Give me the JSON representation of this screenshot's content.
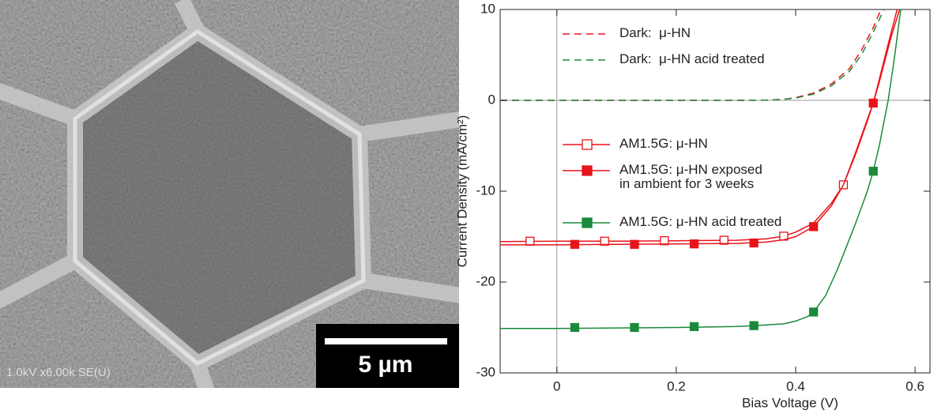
{
  "image": {
    "caption": "1.0kV x6.00k SE(U)",
    "scale_bar": "5 µm"
  },
  "chart_data": {
    "type": "line",
    "xlabel": "Bias Voltage (V)",
    "ylabel": "Current Density (mA/cm²)",
    "xlim": [
      -0.095,
      0.625
    ],
    "ylim": [
      -30,
      10
    ],
    "xticks": [
      0,
      0.2,
      0.4,
      0.6
    ],
    "yticks": [
      -30,
      -20,
      -10,
      0,
      10
    ],
    "zero_lines": true,
    "series": [
      {
        "name": "Dark:  μ-HN",
        "color": "#e8141b",
        "dash": true,
        "x": [
          -0.095,
          0,
          0.1,
          0.2,
          0.3,
          0.35,
          0.38,
          0.4,
          0.43,
          0.46,
          0.49,
          0.51,
          0.53,
          0.543
        ],
        "values": [
          0,
          0,
          0,
          0,
          0,
          0.02,
          0.1,
          0.3,
          0.8,
          1.8,
          3.5,
          5.5,
          8.0,
          10
        ]
      },
      {
        "name": "Dark:  μ-HN acid treated",
        "color": "#1a8a3a",
        "dash": true,
        "x": [
          -0.095,
          0,
          0.1,
          0.2,
          0.3,
          0.35,
          0.38,
          0.4,
          0.43,
          0.46,
          0.49,
          0.51,
          0.53,
          0.548
        ],
        "values": [
          0,
          0,
          0,
          0,
          0,
          0.02,
          0.1,
          0.25,
          0.7,
          1.6,
          3.2,
          5.0,
          7.5,
          10
        ]
      },
      {
        "name": "AM1.5G: μ-HN",
        "color": "#e8141b",
        "marker": "open",
        "x": [
          -0.095,
          0,
          0.1,
          0.2,
          0.3,
          0.35,
          0.38,
          0.4,
          0.43,
          0.46,
          0.48,
          0.5,
          0.52,
          0.53,
          0.54,
          0.55,
          0.56,
          0.574
        ],
        "values": [
          -15.55,
          -15.5,
          -15.5,
          -15.45,
          -15.4,
          -15.25,
          -14.95,
          -14.5,
          -13.5,
          -11.3,
          -9.3,
          -6.0,
          -2.3,
          -0.3,
          2.0,
          4.5,
          7.0,
          10
        ],
        "marker_x": [
          -0.045,
          0.08,
          0.18,
          0.28,
          0.38,
          0.48
        ],
        "marker_values": [
          -15.5,
          -15.5,
          -15.45,
          -15.4,
          -14.95,
          -9.3
        ]
      },
      {
        "name": "AM1.5G: μ-HN exposed\nin ambient for 3 weeks",
        "color": "#e8141b",
        "marker": "filled",
        "x": [
          -0.095,
          0,
          0.1,
          0.2,
          0.3,
          0.35,
          0.38,
          0.4,
          0.43,
          0.46,
          0.48,
          0.5,
          0.52,
          0.53,
          0.54,
          0.55,
          0.56,
          0.57
        ],
        "values": [
          -15.9,
          -15.9,
          -15.85,
          -15.8,
          -15.75,
          -15.6,
          -15.35,
          -15.0,
          -13.9,
          -11.6,
          -9.3,
          -5.8,
          -2.1,
          -0.3,
          2.3,
          4.9,
          7.5,
          10
        ],
        "marker_x": [
          0.03,
          0.13,
          0.23,
          0.33,
          0.43,
          0.53
        ],
        "marker_values": [
          -15.85,
          -15.85,
          -15.8,
          -15.7,
          -13.9,
          -0.3
        ]
      },
      {
        "name": "AM1.5G: μ-HN acid treated",
        "color": "#1a8a3a",
        "marker": "filled",
        "x": [
          -0.095,
          0,
          0.1,
          0.2,
          0.3,
          0.33,
          0.38,
          0.4,
          0.42,
          0.43,
          0.45,
          0.47,
          0.5,
          0.52,
          0.53,
          0.54,
          0.555,
          0.565,
          0.576
        ],
        "values": [
          -25.1,
          -25.1,
          -25.05,
          -25.0,
          -24.9,
          -24.8,
          -24.6,
          -24.3,
          -23.8,
          -23.3,
          -21.5,
          -18.6,
          -13.6,
          -10.0,
          -7.8,
          -5.0,
          0,
          4.5,
          10
        ],
        "marker_x": [
          0.03,
          0.13,
          0.23,
          0.33,
          0.43,
          0.53
        ],
        "marker_values": [
          -25.0,
          -25.0,
          -24.9,
          -24.8,
          -23.3,
          -7.8
        ]
      }
    ]
  }
}
